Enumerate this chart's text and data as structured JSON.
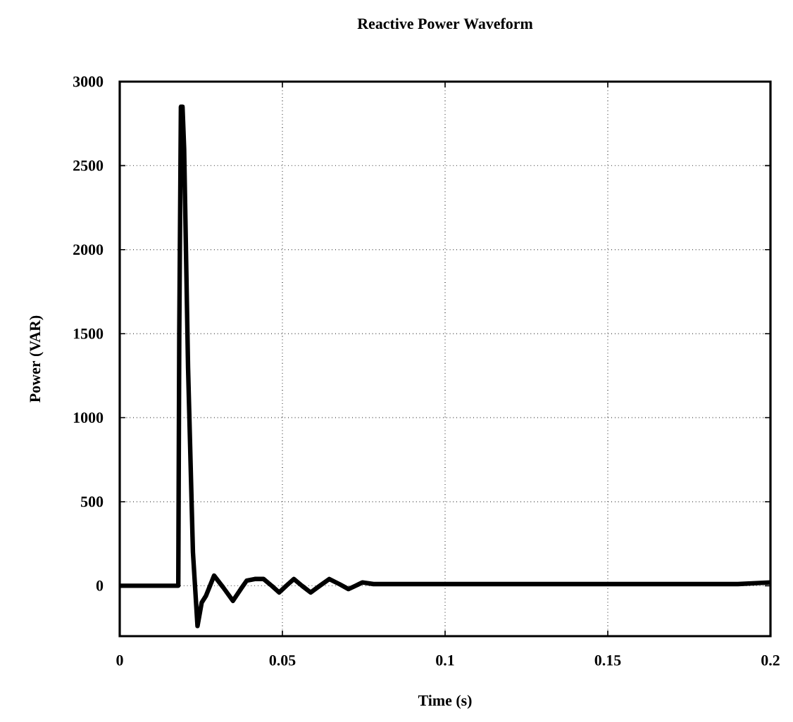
{
  "chart_data": {
    "type": "line",
    "title": "Reactive Power Waveform",
    "xlabel": "Time (s)",
    "ylabel": "Power (VAR)",
    "xlim": [
      0,
      0.2
    ],
    "ylim": [
      -300,
      3000
    ],
    "xticks": [
      0,
      0.05,
      0.1,
      0.15,
      0.2
    ],
    "yticks": [
      0,
      500,
      1000,
      1500,
      2000,
      2500,
      3000
    ],
    "grid": true,
    "series": [
      {
        "color": "#000000",
        "x": [
          0,
          0.018,
          0.0183,
          0.0188,
          0.0193,
          0.0198,
          0.021,
          0.0225,
          0.0239,
          0.0252,
          0.0265,
          0.029,
          0.0318,
          0.0348,
          0.0372,
          0.039,
          0.0415,
          0.0442,
          0.0467,
          0.049,
          0.0512,
          0.0535,
          0.056,
          0.0587,
          0.0615,
          0.0644,
          0.0675,
          0.0703,
          0.0725,
          0.0746,
          0.078,
          0.1,
          0.15,
          0.19,
          0.2
        ],
        "values": [
          0,
          0,
          1500,
          2850,
          2850,
          2600,
          1300,
          200,
          -240,
          -100,
          -60,
          60,
          -10,
          -90,
          -20,
          30,
          40,
          40,
          0,
          -40,
          0,
          40,
          0,
          -40,
          0,
          40,
          10,
          -20,
          0,
          20,
          10,
          10,
          10,
          10,
          20
        ]
      }
    ]
  }
}
